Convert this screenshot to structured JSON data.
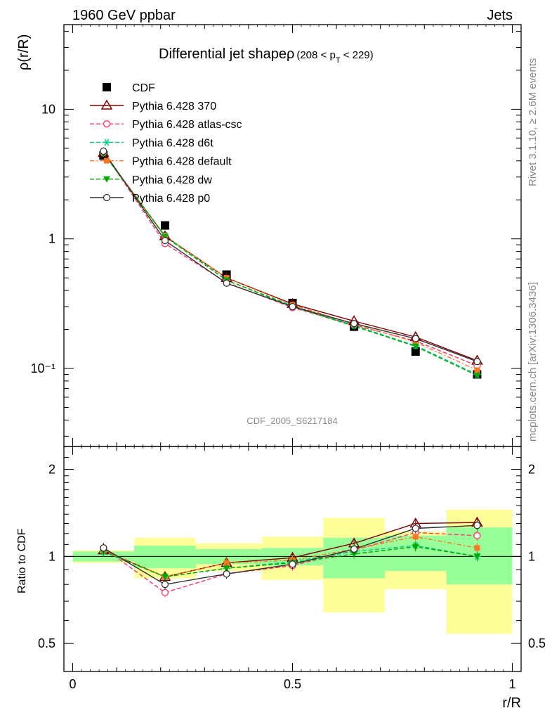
{
  "header": {
    "energy": "1960 GeV ppbar",
    "process": "Jets"
  },
  "side": {
    "rivet": "Rivet 3.1.10, ≥ 2.6M events",
    "mcplots": "mcplots.cern.ch [arXiv:1306.3436]"
  },
  "chart_data": {
    "type": "line",
    "title": "Differential jet shapeρ",
    "title_suffix": "(208 < p_T < 229)",
    "watermark": "CDF_2005_S6217184",
    "xlabel": "r/R",
    "ylabel_main": "ρ(r/R)",
    "ylabel_ratio": "Ratio to CDF",
    "x_ticks": [
      "0",
      "0.5",
      "1"
    ],
    "y_ticks_main": [
      "10",
      "1",
      "10⁻¹"
    ],
    "y_ticks_ratio": [
      "2",
      "1",
      "0.5"
    ],
    "xlim": [
      -0.02,
      1.02
    ],
    "ylim_main": [
      0.025,
      45
    ],
    "ylim_ratio": [
      0.4,
      2.4
    ],
    "log_y_main": true,
    "log_y_ratio": true,
    "x": [
      0.07,
      0.21,
      0.35,
      0.5,
      0.64,
      0.78,
      0.92
    ],
    "bin_edges": [
      0.0,
      0.14,
      0.28,
      0.43,
      0.57,
      0.71,
      0.85,
      1.0
    ],
    "data": {
      "name": "CDF",
      "values": [
        4.4,
        1.27,
        0.53,
        0.32,
        0.21,
        0.135,
        0.09
      ],
      "band_stat": [
        [
          0.96,
          1.04
        ],
        [
          0.91,
          1.09
        ],
        [
          0.94,
          1.06
        ],
        [
          0.93,
          1.07
        ],
        [
          0.84,
          1.16
        ],
        [
          0.89,
          1.18
        ],
        [
          0.8,
          1.26
        ]
      ],
      "band_total": [
        [
          0.95,
          1.05
        ],
        [
          0.84,
          1.16
        ],
        [
          0.89,
          1.11
        ],
        [
          0.83,
          1.17
        ],
        [
          0.64,
          1.36
        ],
        [
          0.77,
          1.22
        ],
        [
          0.54,
          1.45
        ]
      ]
    },
    "series": [
      {
        "name": "Pythia 6.428 370",
        "color": "#800000",
        "dash": "",
        "marker": "triangle-open",
        "values": [
          4.6,
          1.05,
          0.5,
          0.315,
          0.232,
          0.175,
          0.115
        ],
        "ratio": [
          1.05,
          0.85,
          0.95,
          0.99,
          1.11,
          1.3,
          1.31
        ]
      },
      {
        "name": "Pythia 6.428 atlas-csc",
        "color": "#ff3366",
        "dash": "6,3",
        "marker": "circle-open",
        "values": [
          4.7,
          0.92,
          0.46,
          0.295,
          0.216,
          0.163,
          0.105
        ],
        "ratio": [
          1.07,
          0.75,
          0.87,
          0.93,
          1.05,
          1.21,
          1.18
        ]
      },
      {
        "name": "Pythia 6.428 d6t",
        "color": "#00cc88",
        "dash": "6,3",
        "marker": "asterisk",
        "values": [
          4.6,
          1.06,
          0.48,
          0.305,
          0.215,
          0.15,
          0.09
        ],
        "ratio": [
          1.04,
          0.85,
          0.91,
          0.96,
          1.04,
          1.09,
          1.0
        ]
      },
      {
        "name": "Pythia 6.428 default",
        "color": "#ff7722",
        "dash": "6,3,2,3",
        "marker": "square-filled",
        "values": [
          4.65,
          1.05,
          0.5,
          0.31,
          0.22,
          0.16,
          0.097
        ],
        "ratio": [
          1.05,
          0.85,
          0.95,
          0.97,
          1.06,
          1.17,
          1.07
        ]
      },
      {
        "name": "Pythia 6.428 dw",
        "color": "#00aa00",
        "dash": "6,3",
        "marker": "triangle-down-filled",
        "values": [
          4.55,
          1.04,
          0.48,
          0.3,
          0.212,
          0.148,
          0.088
        ],
        "ratio": [
          1.04,
          0.85,
          0.91,
          0.95,
          1.02,
          1.08,
          1.0
        ]
      },
      {
        "name": "Pythia 6.428 p0",
        "color": "#333333",
        "dash": "",
        "marker": "circle-open",
        "values": [
          4.75,
          0.97,
          0.455,
          0.3,
          0.222,
          0.17,
          0.113
        ],
        "ratio": [
          1.07,
          0.8,
          0.87,
          0.94,
          1.06,
          1.25,
          1.28
        ]
      }
    ],
    "colors": {
      "band_total": "#ffff99",
      "band_stat": "#99ff99",
      "watermark": "#999999"
    }
  }
}
